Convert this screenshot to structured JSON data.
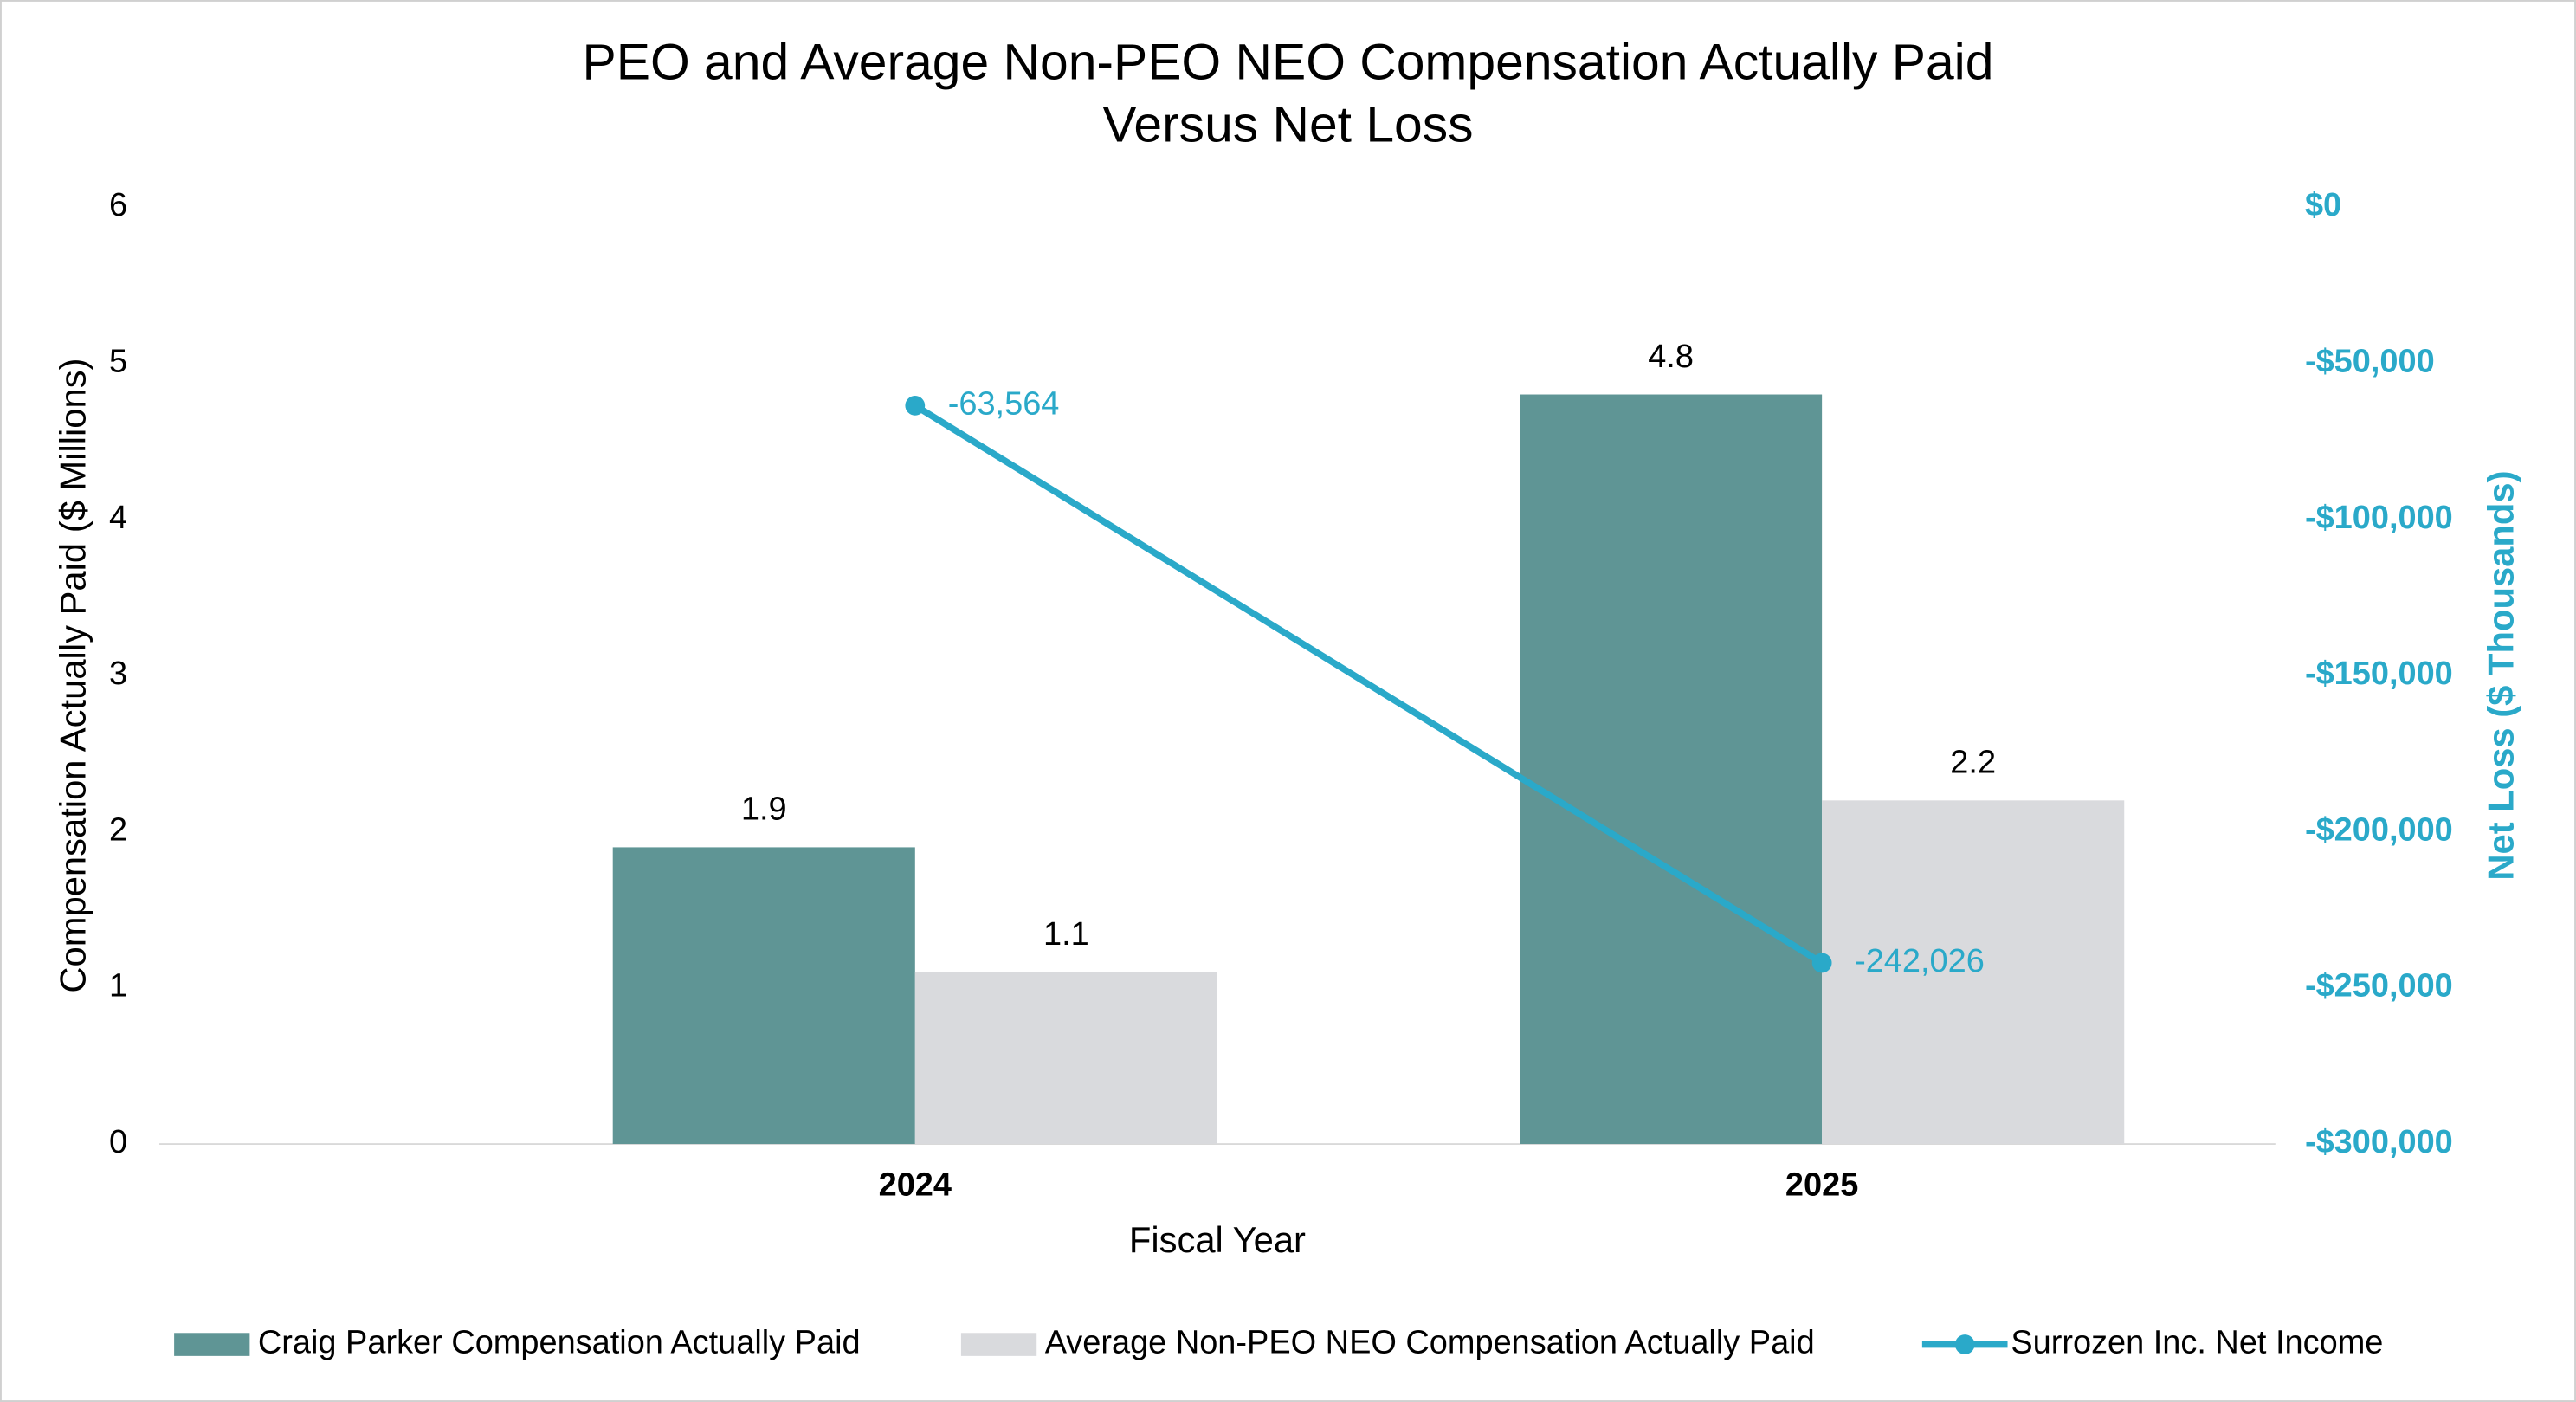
{
  "chart_data": {
    "type": "bar",
    "title": "PEO and Average Non-PEO NEO Compensation Actually Paid",
    "subtitle": "Versus Net Loss",
    "x_label": "Fiscal Year",
    "y_label": "Compensation Actually Paid ($ Millions)",
    "y2_label": "Net Loss ($ Thousands)",
    "categories": [
      "2024",
      "2025"
    ],
    "series": [
      {
        "name": "Craig Parker Compensation Actually Paid",
        "color": "#5f9595",
        "type": "bar",
        "values": [
          1.9,
          4.8
        ]
      },
      {
        "name": "Average Non-PEO NEO Compensation Actually Paid",
        "color": "#d9dadd",
        "type": "bar",
        "values": [
          1.1,
          2.2
        ]
      },
      {
        "name": "Surrozen Inc. Net Income",
        "color": "#2aa9c9",
        "type": "line",
        "axis": "y2",
        "values": [
          -63564,
          -242026
        ],
        "value_labels": [
          "-63,564",
          "-242,026"
        ]
      }
    ],
    "ylim": [
      0,
      6
    ],
    "yticks": [
      0,
      1,
      2,
      3,
      4,
      5,
      6
    ],
    "y2lim": [
      -300000,
      0
    ],
    "y2ticks": [
      {
        "value": -300000,
        "label": "-$300,000"
      },
      {
        "value": -250000,
        "label": "-$250,000"
      },
      {
        "value": -200000,
        "label": "-$200,000"
      },
      {
        "value": -150000,
        "label": "-$150,000"
      },
      {
        "value": -100000,
        "label": "-$100,000"
      },
      {
        "value": -50000,
        "label": "-$50,000"
      },
      {
        "value": 0,
        "label": "$0"
      }
    ],
    "legend": "bottom"
  }
}
